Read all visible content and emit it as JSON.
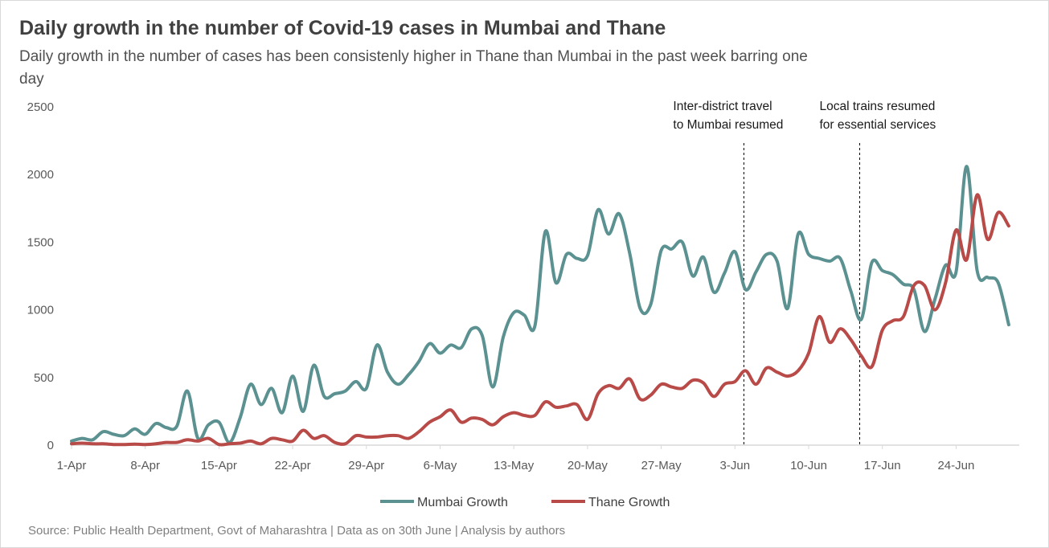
{
  "title": "Daily growth in the number of Covid-19 cases in Mumbai and Thane",
  "subtitle": "Daily growth in the number of cases has been consistenly higher in Thane than Mumbai in the past week barring one day",
  "source": "Source: Public Health Department, Govt of Maharashtra | Data as on 30th June | Analysis by authors",
  "chart_data": {
    "type": "line",
    "title": "Daily growth in the number of Covid-19 cases in Mumbai and Thane",
    "xlabel": "",
    "ylabel": "",
    "ylim": [
      0,
      2500
    ],
    "yticks": [
      0,
      500,
      1000,
      1500,
      2000,
      2500
    ],
    "grid": false,
    "legend": "bottom",
    "x_tick_labels": [
      "1-Apr",
      "8-Apr",
      "15-Apr",
      "22-Apr",
      "29-Apr",
      "6-May",
      "13-May",
      "20-May",
      "27-May",
      "3-Jun",
      "10-Jun",
      "17-Jun",
      "24-Jun"
    ],
    "x_tick_days": [
      0,
      7,
      14,
      21,
      28,
      35,
      42,
      49,
      56,
      63,
      70,
      77,
      84
    ],
    "x_start": "1-Apr",
    "x_end": "30-Jun",
    "annotations": [
      {
        "lines": [
          "Inter-district travel",
          "to Mumbai resumed"
        ],
        "date": "4-Jun"
      },
      {
        "lines": [
          "Local trains resumed",
          "for essential services"
        ],
        "date": "15-Jun"
      }
    ],
    "series": [
      {
        "name": "Mumbai Growth",
        "color": "#5b9291",
        "values": [
          30,
          50,
          40,
          100,
          80,
          70,
          120,
          80,
          160,
          130,
          140,
          400,
          50,
          150,
          170,
          20,
          200,
          450,
          300,
          420,
          240,
          510,
          250,
          590,
          360,
          380,
          400,
          470,
          420,
          740,
          540,
          450,
          520,
          620,
          750,
          680,
          740,
          720,
          860,
          810,
          430,
          800,
          980,
          960,
          880,
          1580,
          1200,
          1410,
          1380,
          1400,
          1740,
          1560,
          1710,
          1420,
          1010,
          1040,
          1440,
          1450,
          1500,
          1250,
          1390,
          1130,
          1270,
          1430,
          1150,
          1280,
          1410,
          1360,
          1010,
          1560,
          1410,
          1380,
          1360,
          1380,
          1140,
          930,
          1350,
          1290,
          1260,
          1190,
          1150,
          840,
          1080,
          1330,
          1280,
          2060,
          1290,
          1240,
          1200,
          890
        ]
      },
      {
        "name": "Thane Growth",
        "color": "#b84a48",
        "values": [
          10,
          15,
          10,
          10,
          5,
          5,
          8,
          5,
          10,
          20,
          20,
          40,
          30,
          50,
          5,
          10,
          15,
          30,
          10,
          50,
          40,
          30,
          110,
          50,
          70,
          20,
          10,
          70,
          60,
          60,
          70,
          70,
          50,
          100,
          170,
          210,
          260,
          170,
          200,
          190,
          150,
          210,
          240,
          220,
          220,
          320,
          280,
          290,
          300,
          190,
          380,
          440,
          420,
          490,
          340,
          370,
          450,
          430,
          420,
          480,
          460,
          360,
          450,
          470,
          550,
          450,
          570,
          540,
          510,
          550,
          680,
          950,
          760,
          860,
          780,
          660,
          580,
          850,
          920,
          950,
          1180,
          1180,
          1000,
          1200,
          1590,
          1370,
          1850,
          1520,
          1720,
          1620
        ]
      }
    ]
  }
}
